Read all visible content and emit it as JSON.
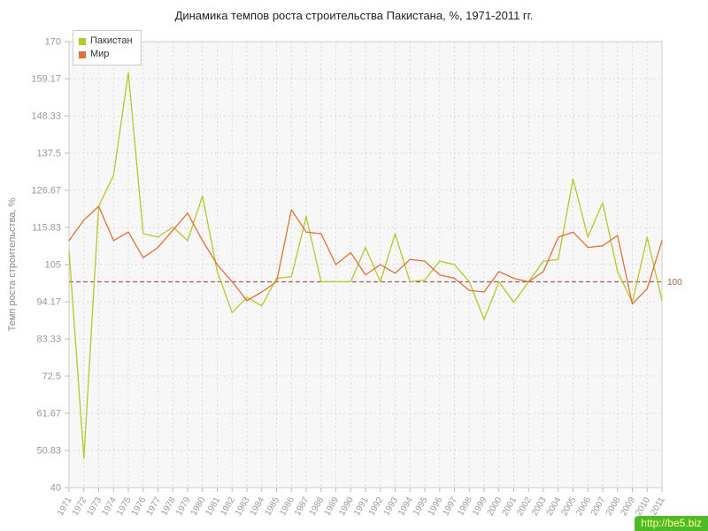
{
  "chart_data": {
    "type": "line",
    "title": "Динамика темпов роста строительства Пакистана, %, 1971-2011 гг.",
    "ylabel": "Темп роста строительства, %",
    "xlabel": "",
    "ylim": [
      40,
      170
    ],
    "yticks": [
      40,
      50.83,
      61.67,
      72.5,
      83.33,
      94.17,
      105,
      115.83,
      126.67,
      137.5,
      148.33,
      159.17,
      170
    ],
    "x": [
      1971,
      1972,
      1973,
      1974,
      1975,
      1976,
      1977,
      1978,
      1979,
      1980,
      1981,
      1982,
      1983,
      1984,
      1985,
      1986,
      1987,
      1988,
      1989,
      1990,
      1991,
      1992,
      1993,
      1994,
      1995,
      1996,
      1997,
      1998,
      1999,
      2000,
      2001,
      2002,
      2003,
      2004,
      2005,
      2006,
      2007,
      2008,
      2009,
      2010,
      2011
    ],
    "series": [
      {
        "name": "Пакистан",
        "color": "#b5c827",
        "values": [
          109,
          48.5,
          122,
          131,
          161,
          114,
          113,
          116,
          112,
          125,
          103,
          91,
          95.5,
          93,
          101,
          101.5,
          119,
          100,
          100,
          100,
          110,
          100,
          114,
          100,
          100.5,
          106,
          105,
          100,
          89,
          100,
          94,
          100,
          106,
          106.5,
          130,
          113,
          123,
          103,
          94,
          113,
          94.5
        ]
      },
      {
        "name": "Мир",
        "color": "#e0703a",
        "values": [
          112,
          118,
          122,
          112,
          114.5,
          107,
          110,
          115,
          120,
          112,
          105,
          100,
          94.5,
          97,
          100,
          121,
          114.5,
          114,
          105,
          108.5,
          102,
          105,
          102.5,
          106.5,
          106,
          102,
          101,
          97.5,
          97,
          103,
          101,
          100,
          103,
          113,
          114.5,
          110,
          110.5,
          113.5,
          93.5,
          98,
          112
        ]
      }
    ],
    "reference_line": {
      "value": 100,
      "label": "100",
      "line_color": "#993333",
      "label_color": "#b0653a"
    },
    "grid": true,
    "legend_position": "top-left",
    "colors": {
      "plot_bg": "#f7f7f7",
      "grid": "#d9d9d9",
      "axis_text": "#999999",
      "border": "#cccccc",
      "tick": "#bbbbbb"
    }
  },
  "watermark": {
    "text": "http://be5.biz",
    "bg_color": "#4fba28",
    "text_color": "#ffff99"
  }
}
